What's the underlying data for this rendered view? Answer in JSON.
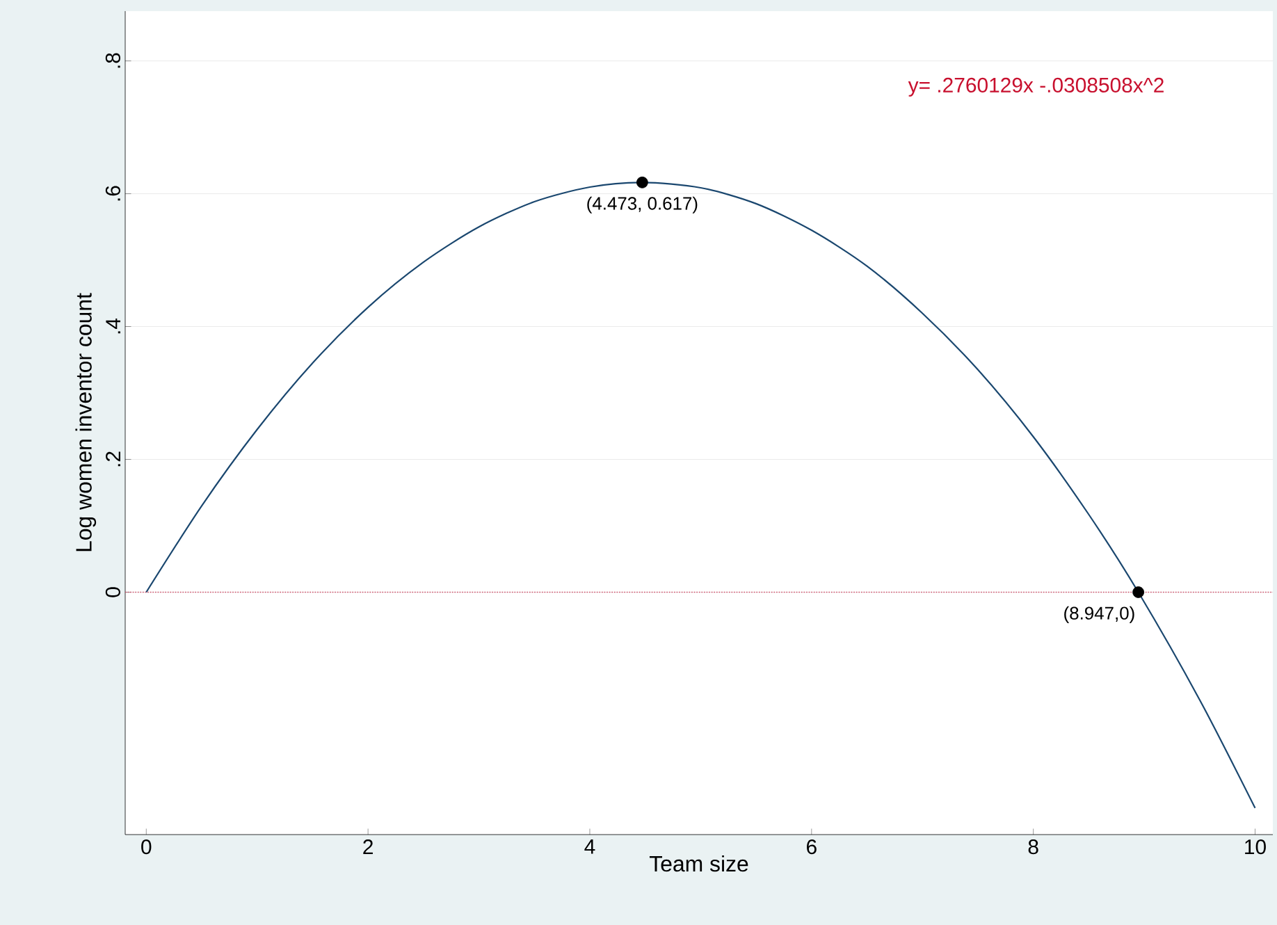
{
  "chart_data": {
    "type": "line",
    "xlabel": "Team size",
    "ylabel": "Log women inventor count",
    "xlim": [
      -0.19,
      10.16
    ],
    "ylim": [
      -0.365,
      0.875
    ],
    "xticks": [
      0,
      2,
      4,
      6,
      8,
      10
    ],
    "yticks": [
      {
        "value": 0,
        "label": "0"
      },
      {
        "value": 0.2,
        "label": ".2"
      },
      {
        "value": 0.4,
        "label": ".4"
      },
      {
        "value": 0.6,
        "label": ".6"
      },
      {
        "value": 0.8,
        "label": ".8"
      }
    ],
    "grid": "y",
    "series": [
      {
        "color": "#1a476f",
        "marker": "none",
        "x": [
          0,
          0.5,
          1,
          1.5,
          2,
          2.5,
          3,
          3.5,
          4,
          4.473,
          5,
          5.5,
          6,
          6.5,
          7,
          7.5,
          8,
          8.5,
          8.947,
          9.5,
          10
        ],
        "values": [
          0,
          0.13,
          0.245,
          0.345,
          0.429,
          0.497,
          0.55,
          0.588,
          0.61,
          0.617,
          0.609,
          0.585,
          0.545,
          0.491,
          0.42,
          0.335,
          0.234,
          0.117,
          0,
          -0.162,
          -0.325
        ]
      },
      {
        "type": "scatter",
        "color": "#000000",
        "marker": "circle",
        "x": [
          4.473,
          8.947
        ],
        "values": [
          0.617,
          0
        ]
      }
    ],
    "ref_lines": [
      {
        "axis": "y",
        "value": 0,
        "color": "#d0506a",
        "line_style": "dotted"
      }
    ],
    "annotations": [
      {
        "text": "(4.473, 0.617)",
        "x": 4.473,
        "y": 0.617
      },
      {
        "text": "(8.947,0)",
        "x": 8.947,
        "y": 0
      },
      "y= .2760129x -.0308508x^2"
    ]
  }
}
